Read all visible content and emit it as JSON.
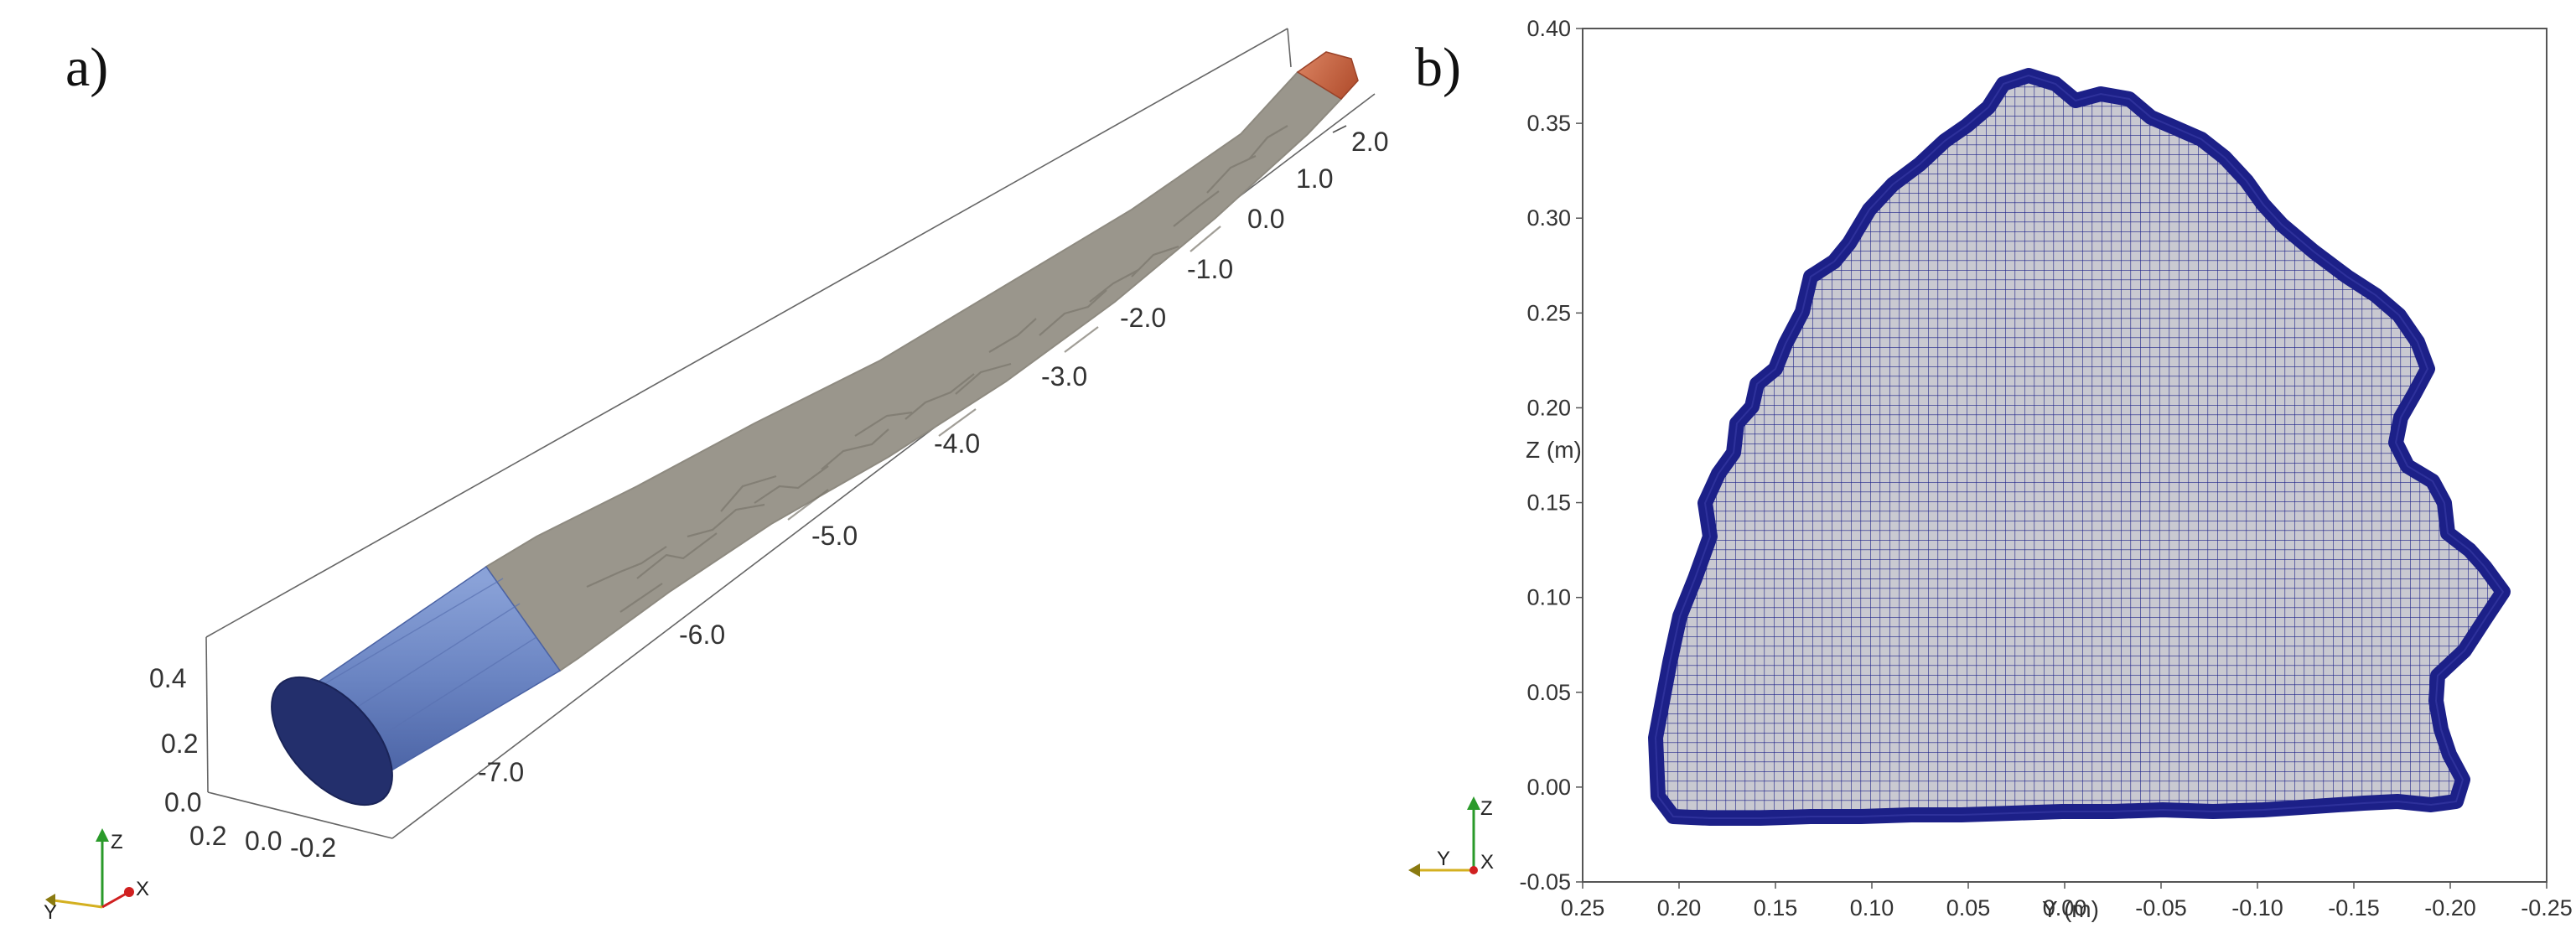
{
  "panel_a": {
    "label": "a)",
    "x_ticks": [
      "2.0",
      "1.0",
      "0.0",
      "-1.0",
      "-2.0",
      "-3.0",
      "-4.0",
      "-5.0",
      "-6.0",
      "-7.0"
    ],
    "z_ticks": [
      "0.4",
      "0.2",
      "0.0"
    ],
    "y_ticks": [
      "0.2",
      "0.0",
      "-0.2"
    ],
    "triad": {
      "z": "Z",
      "y": "Y",
      "x": "X"
    },
    "colors": {
      "rock": "#c8c4b8",
      "inlet": "#6c86c4",
      "inlet_face": "#223070",
      "outlet": "#c4603e"
    }
  },
  "panel_b": {
    "label": "b)",
    "x_axis_label": "Y (m)",
    "y_axis_label": "Z (m)",
    "x_ticks": [
      "0.25",
      "0.20",
      "0.15",
      "0.10",
      "0.05",
      "0.00",
      "-0.05",
      "-0.10",
      "-0.15",
      "-0.20",
      "-0.25"
    ],
    "y_ticks": [
      "0.40",
      "0.35",
      "0.30",
      "0.25",
      "0.20",
      "0.15",
      "0.10",
      "0.05",
      "0.00",
      "-0.05"
    ],
    "triad": {
      "z": "Z",
      "y": "Y",
      "x": "X"
    },
    "colors": {
      "mesh_fill": "#c7c7cf",
      "mesh_line": "#1c2088"
    }
  }
}
